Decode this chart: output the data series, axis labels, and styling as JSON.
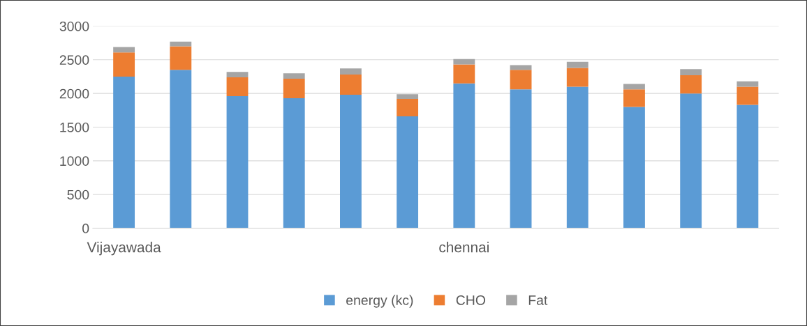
{
  "chart_data": {
    "type": "bar",
    "stacked": true,
    "categories": [
      "Vijayawada",
      null,
      null,
      null,
      null,
      null,
      "chennai",
      null,
      null,
      null,
      null,
      null
    ],
    "series": [
      {
        "name": "energy (kc)",
        "color": "#5b9bd5",
        "values": [
          2250,
          2350,
          1960,
          1930,
          1980,
          1660,
          2150,
          2060,
          2100,
          1800,
          2000,
          1830
        ]
      },
      {
        "name": "CHO",
        "color": "#ed7d31",
        "values": [
          360,
          350,
          280,
          290,
          300,
          260,
          280,
          290,
          280,
          260,
          270,
          270
        ]
      },
      {
        "name": "Fat",
        "color": "#a5a5a5",
        "values": [
          80,
          70,
          80,
          80,
          90,
          70,
          80,
          70,
          90,
          80,
          90,
          80
        ]
      }
    ],
    "ylim": [
      0,
      3000
    ],
    "yticks": [
      0,
      500,
      1000,
      1500,
      2000,
      2500,
      3000
    ],
    "grid": "y",
    "legend": "bottom"
  }
}
